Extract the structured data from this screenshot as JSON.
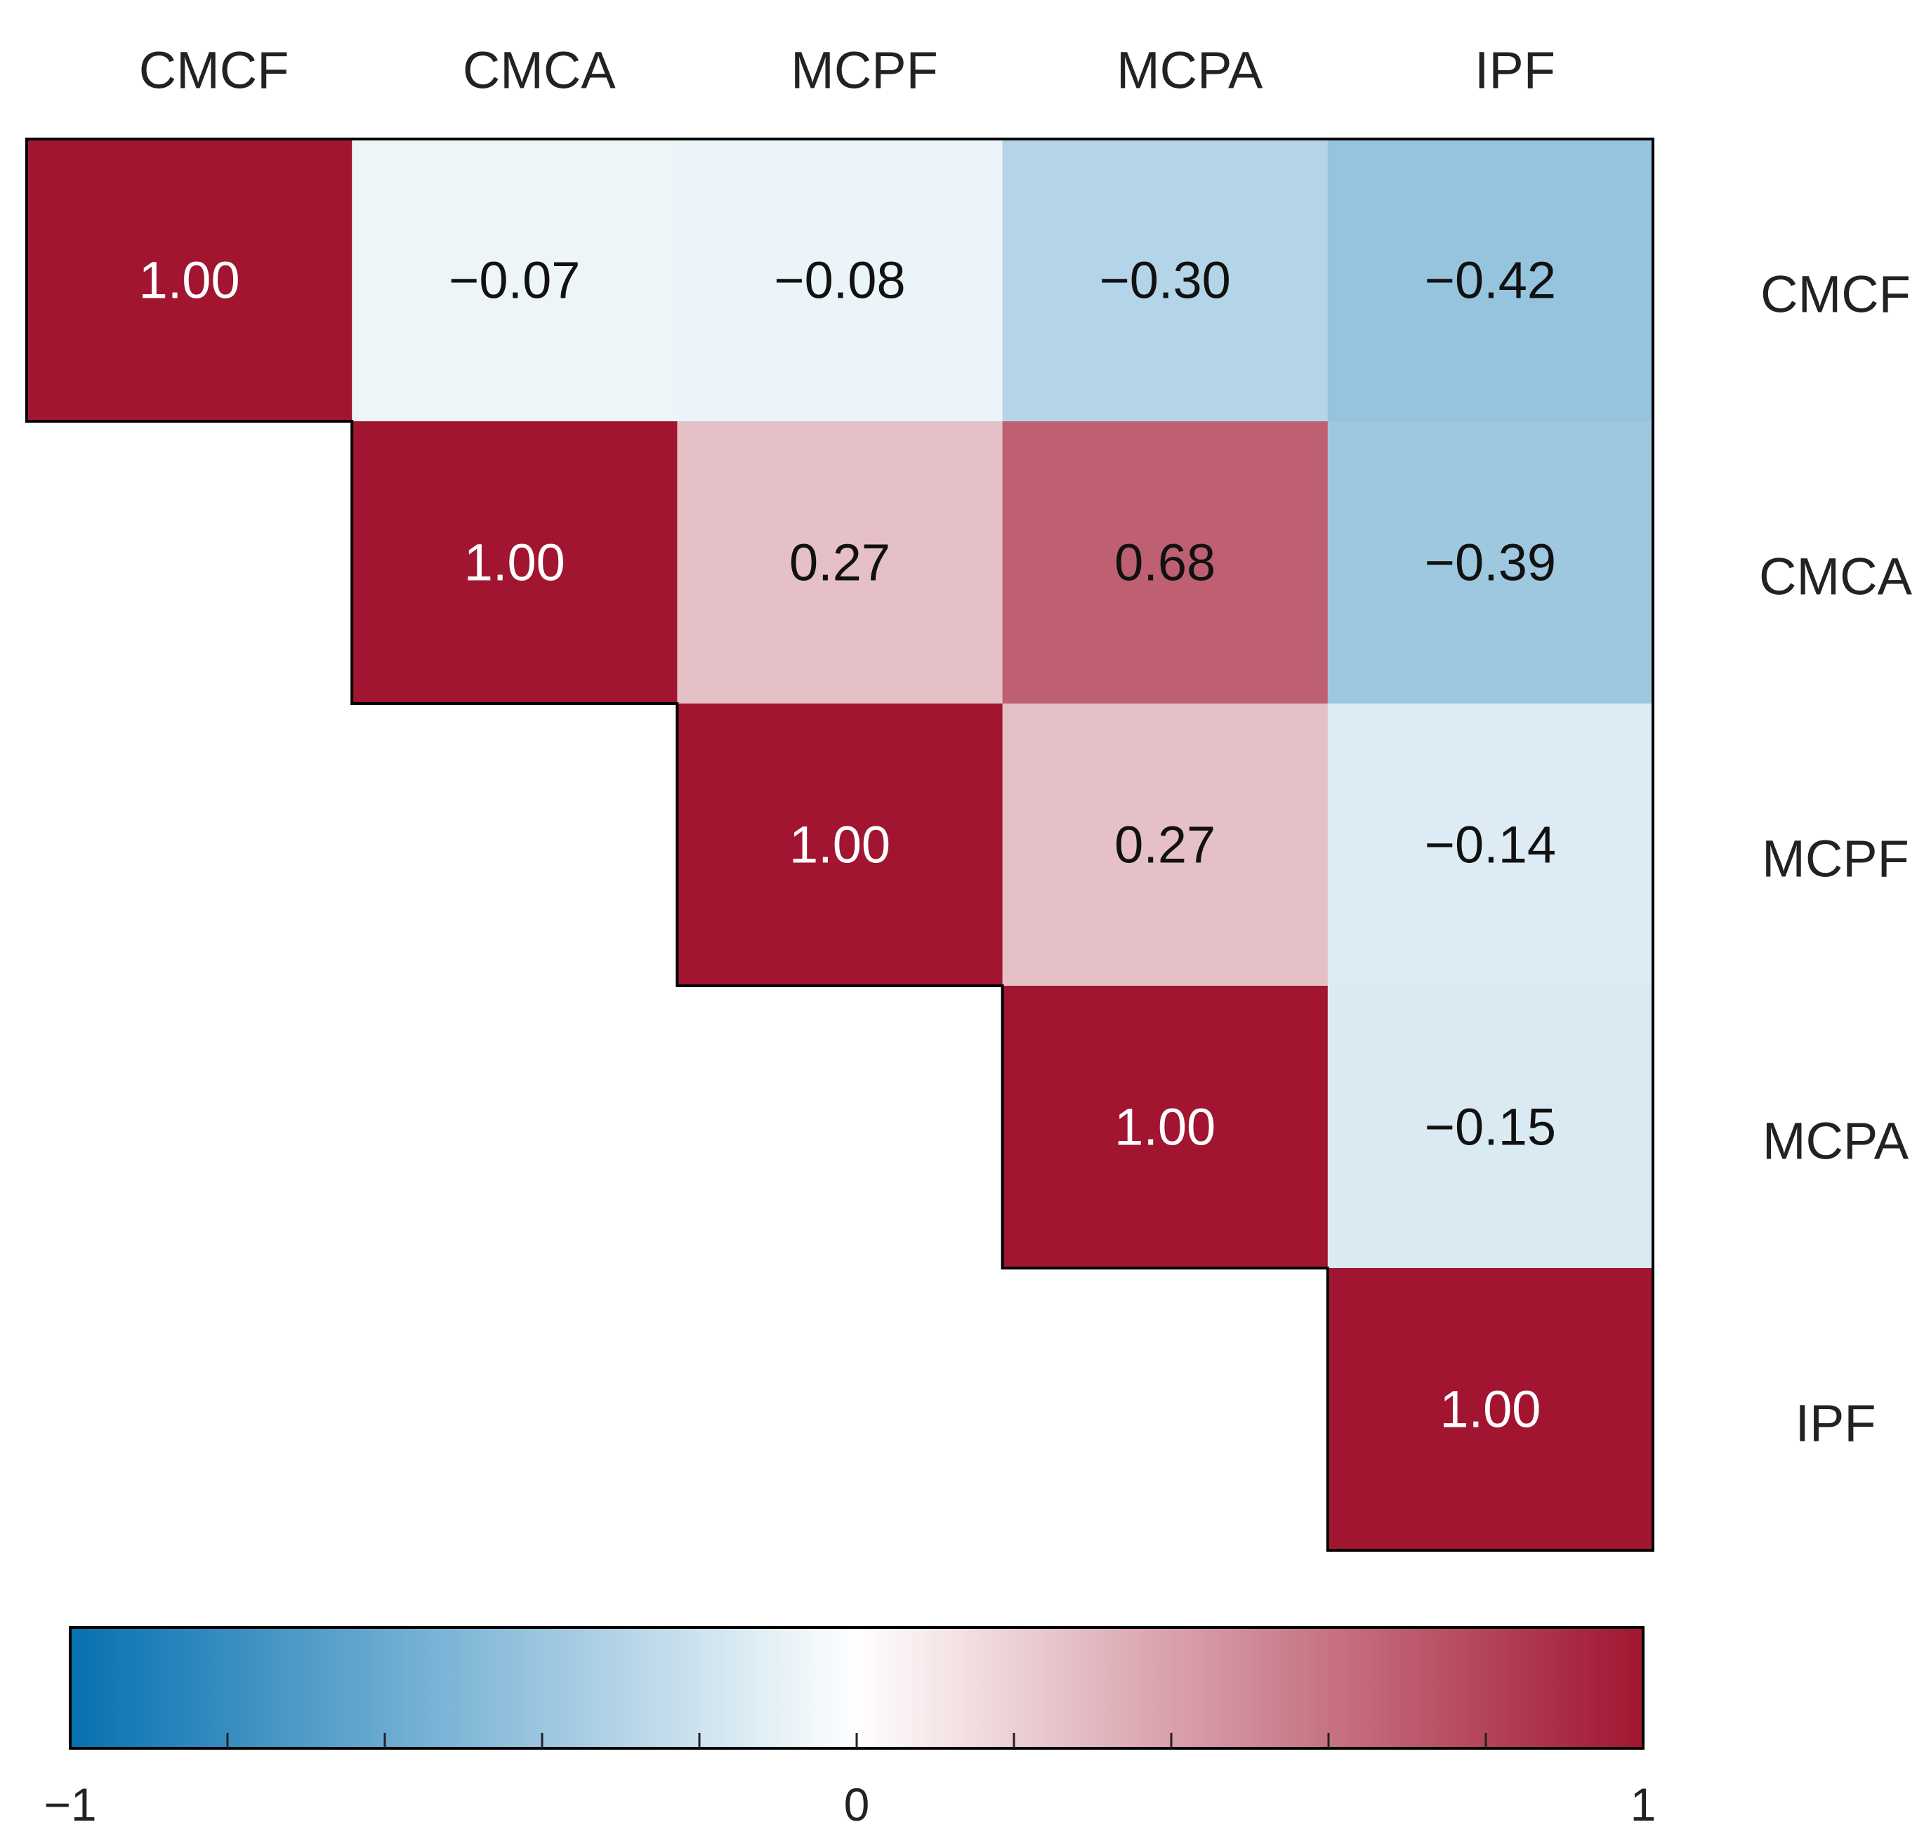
{
  "chart_data": {
    "type": "heatmap",
    "title": "",
    "variables": [
      "CMCF",
      "CMCA",
      "MCPF",
      "MCPA",
      "IPF"
    ],
    "layout": "upper-triangle",
    "matrix": [
      [
        1.0,
        -0.07,
        -0.08,
        -0.3,
        -0.42
      ],
      [
        null,
        1.0,
        0.27,
        0.68,
        -0.39
      ],
      [
        null,
        null,
        1.0,
        0.27,
        -0.14
      ],
      [
        null,
        null,
        null,
        1.0,
        -0.15
      ],
      [
        null,
        null,
        null,
        null,
        1.0
      ]
    ],
    "cell_labels": [
      [
        "1.00",
        "−0.07",
        "−0.08",
        "−0.30",
        "−0.42"
      ],
      [
        "",
        "1.00",
        "0.27",
        "0.68",
        "−0.39"
      ],
      [
        "",
        "",
        "1.00",
        "0.27",
        "−0.14"
      ],
      [
        "",
        "",
        "",
        "1.00",
        "−0.15"
      ],
      [
        "",
        "",
        "",
        "",
        "1.00"
      ]
    ],
    "colorbar": {
      "range": [
        -1,
        1
      ],
      "tick_labels": [
        "−1",
        "0",
        "1"
      ],
      "minor_tick_values": [
        -0.8,
        -0.6,
        -0.4,
        -0.2,
        0,
        0.2,
        0.4,
        0.6,
        0.8
      ],
      "color_low": "#0571b0",
      "color_mid": "#ffffff",
      "color_high": "#a11530"
    },
    "top_axis_labels": [
      "CMCF",
      "CMCA",
      "MCPF",
      "MCPA",
      "IPF"
    ],
    "right_axis_labels": [
      "CMCF",
      "CMCA",
      "MCPF",
      "MCPA",
      "IPF"
    ]
  }
}
